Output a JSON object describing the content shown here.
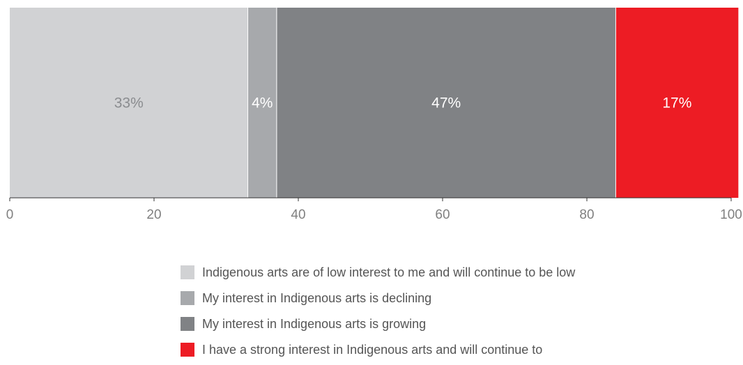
{
  "chart_data": {
    "type": "bar",
    "orientation": "horizontal",
    "stacked": true,
    "title": "",
    "xlabel": "",
    "ylabel": "",
    "xlim": [
      0,
      100
    ],
    "xticks": [
      0,
      20,
      40,
      60,
      80,
      100
    ],
    "grid": false,
    "legend_position": "bottom",
    "series": [
      {
        "name": "Indigenous arts are of low interest to me and will continue to be low",
        "value": 33,
        "label": "33%",
        "color": "#d1d2d4",
        "label_color": "#8a8c8f"
      },
      {
        "name": "My interest in Indigenous arts is declining",
        "value": 4,
        "label": "4%",
        "color": "#a7a9ac",
        "label_color": "#ffffff"
      },
      {
        "name": "My interest in Indigenous arts is growing",
        "value": 47,
        "label": "47%",
        "color": "#808285",
        "label_color": "#ffffff"
      },
      {
        "name": "I have a strong interest in Indigenous arts and will continue to",
        "value": 17,
        "label": "17%",
        "color": "#ed1c24",
        "label_color": "#ffffff"
      }
    ]
  }
}
